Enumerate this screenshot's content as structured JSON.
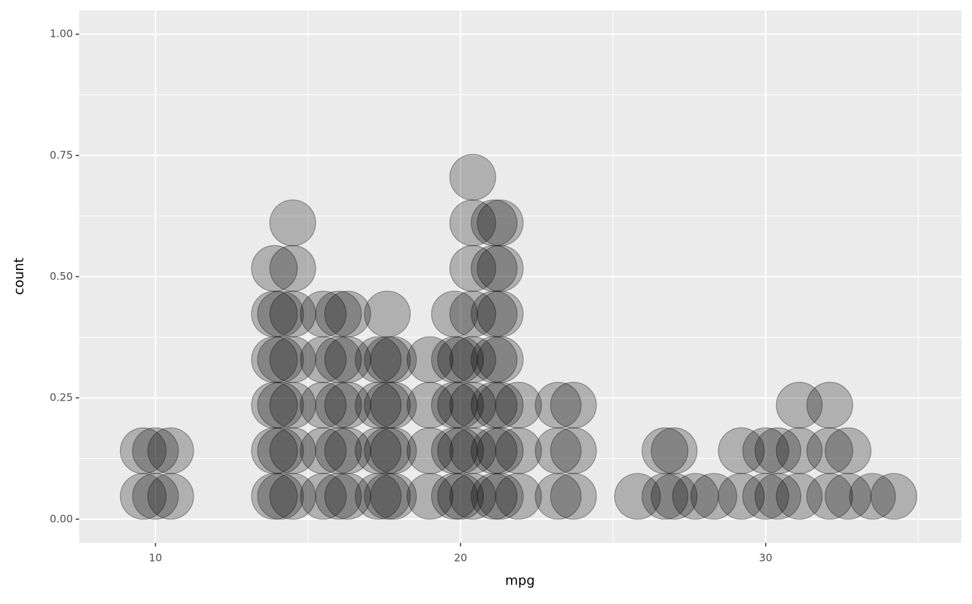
{
  "chart_data": {
    "type": "scatter",
    "x_label": "mpg",
    "y_label": "count",
    "x": [
      9.6,
      9.6,
      10.0,
      10.0,
      10.5,
      10.5,
      13.9,
      13.9,
      13.9,
      13.9,
      13.9,
      13.9,
      14.1,
      14.1,
      14.1,
      14.1,
      14.1,
      14.5,
      14.5,
      14.5,
      14.5,
      14.5,
      14.5,
      14.5,
      15.5,
      15.5,
      15.5,
      15.5,
      15.5,
      16.0,
      16.0,
      16.0,
      16.0,
      16.0,
      16.3,
      16.3,
      16.3,
      16.3,
      16.3,
      17.3,
      17.3,
      17.3,
      17.3,
      17.6,
      17.6,
      17.6,
      17.6,
      17.6,
      17.8,
      17.8,
      17.8,
      17.8,
      19.0,
      19.0,
      19.0,
      19.0,
      19.8,
      19.8,
      19.8,
      19.8,
      19.8,
      20.0,
      20.0,
      20.0,
      20.0,
      20.4,
      20.4,
      20.4,
      20.4,
      20.4,
      20.4,
      20.4,
      20.4,
      21.1,
      21.1,
      21.1,
      21.1,
      21.1,
      21.1,
      21.1,
      21.3,
      21.3,
      21.3,
      21.3,
      21.3,
      21.3,
      21.3,
      21.9,
      21.9,
      21.9,
      23.2,
      23.2,
      23.2,
      23.7,
      23.7,
      23.7,
      25.8,
      26.7,
      26.7,
      27.0,
      27.0,
      27.7,
      28.3,
      29.2,
      29.2,
      30.0,
      30.0,
      30.4,
      30.4,
      31.1,
      31.1,
      31.1,
      32.1,
      32.1,
      32.1,
      32.7,
      32.7,
      33.5,
      34.2
    ],
    "values": [
      0.047,
      0.141,
      0.047,
      0.141,
      0.047,
      0.141,
      0.047,
      0.141,
      0.235,
      0.329,
      0.423,
      0.517,
      0.047,
      0.141,
      0.235,
      0.329,
      0.423,
      0.047,
      0.141,
      0.235,
      0.329,
      0.423,
      0.517,
      0.611,
      0.047,
      0.141,
      0.235,
      0.329,
      0.423,
      0.047,
      0.141,
      0.235,
      0.329,
      0.423,
      0.047,
      0.141,
      0.235,
      0.329,
      0.423,
      0.047,
      0.141,
      0.235,
      0.329,
      0.047,
      0.141,
      0.235,
      0.329,
      0.423,
      0.047,
      0.141,
      0.235,
      0.329,
      0.047,
      0.141,
      0.235,
      0.329,
      0.047,
      0.141,
      0.235,
      0.329,
      0.423,
      0.047,
      0.141,
      0.235,
      0.329,
      0.047,
      0.141,
      0.235,
      0.329,
      0.423,
      0.517,
      0.611,
      0.705,
      0.047,
      0.141,
      0.235,
      0.329,
      0.423,
      0.517,
      0.611,
      0.047,
      0.141,
      0.235,
      0.329,
      0.423,
      0.517,
      0.611,
      0.047,
      0.141,
      0.235,
      0.047,
      0.141,
      0.235,
      0.047,
      0.141,
      0.235,
      0.047,
      0.047,
      0.141,
      0.047,
      0.141,
      0.047,
      0.047,
      0.047,
      0.141,
      0.047,
      0.141,
      0.047,
      0.141,
      0.047,
      0.141,
      0.235,
      0.047,
      0.141,
      0.235,
      0.047,
      0.141,
      0.047,
      0.047
    ],
    "color": "#000000",
    "xlim": [
      7.5,
      36.42
    ],
    "xticks": [
      10,
      20,
      30
    ],
    "ylim": [
      -0.049,
      1.049
    ],
    "yticks": [
      {
        "value": 0,
        "label": "0.00"
      },
      {
        "value": 0.25,
        "label": "0.25"
      },
      {
        "value": 0.5,
        "label": "0.50"
      },
      {
        "value": 0.75,
        "label": "0.75"
      },
      {
        "value": 1,
        "label": "1.00"
      }
    ],
    "grid": true
  }
}
